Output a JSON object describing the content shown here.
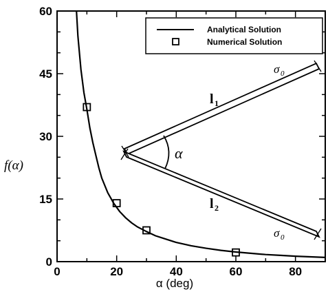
{
  "chart_data": {
    "type": "line",
    "xlabel": "α (deg)",
    "ylabel": "f(α)",
    "xlim": [
      0,
      90
    ],
    "ylim": [
      0,
      60
    ],
    "xticks": [
      0,
      20,
      40,
      60,
      80
    ],
    "yticks": [
      0,
      15,
      30,
      45,
      60
    ],
    "grid": false,
    "legend_position": "top-right",
    "series": [
      {
        "name": "Analytical Solution",
        "style": "line",
        "x": [
          6.5,
          7,
          8,
          9,
          10,
          11,
          12,
          13,
          14,
          15,
          17,
          19,
          21,
          23,
          25,
          27,
          30,
          33,
          36,
          40,
          45,
          50,
          55,
          60,
          65,
          70,
          75,
          80,
          85,
          90
        ],
        "y": [
          60,
          54,
          46,
          40.5,
          36.5,
          32,
          28.5,
          25.5,
          22.5,
          20,
          16.5,
          14,
          12,
          10.5,
          9.3,
          8.3,
          7.2,
          6.2,
          5.5,
          4.6,
          3.8,
          3.2,
          2.7,
          2.3,
          2.0,
          1.7,
          1.5,
          1.3,
          1.15,
          1.0
        ]
      },
      {
        "name": "Numerical Solution",
        "style": "square-marker",
        "x": [
          10,
          20,
          30,
          60
        ],
        "y": [
          37,
          14,
          7.5,
          2.2
        ]
      }
    ],
    "inset": {
      "angle_symbol": "α",
      "bar_top_label": "l",
      "bar_top_subscript": "1",
      "bar_bottom_label": "l",
      "bar_bottom_subscript": "2",
      "stress_label": "σ",
      "stress_subscript": "0"
    }
  }
}
